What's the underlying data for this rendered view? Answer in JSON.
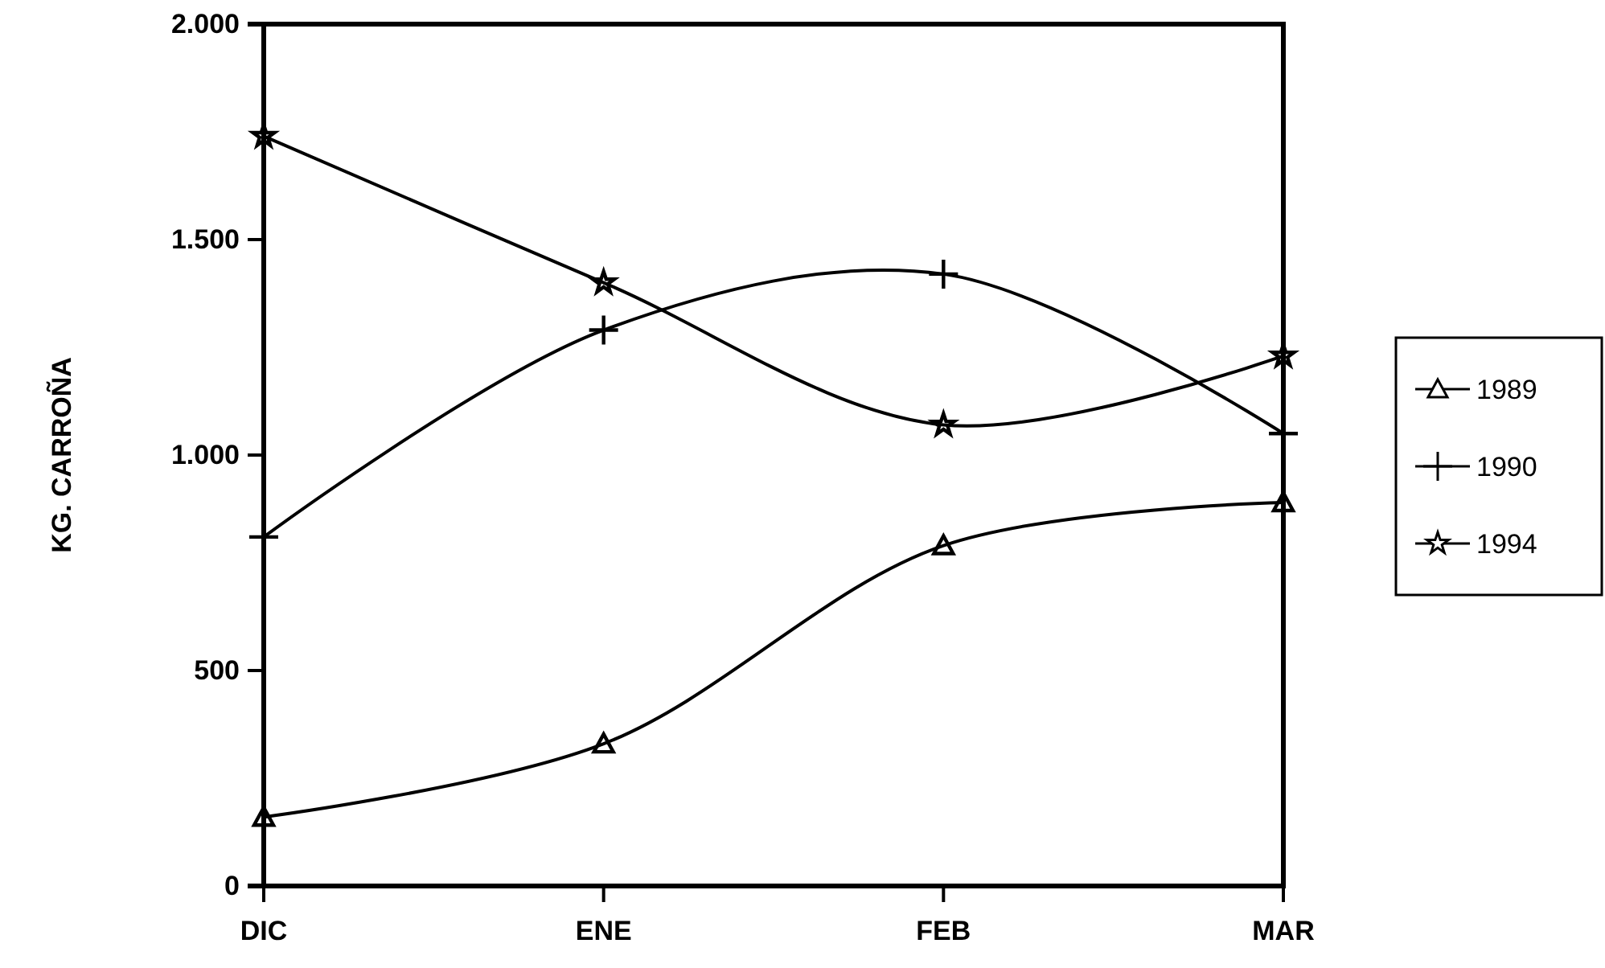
{
  "chart_data": {
    "type": "line",
    "ylabel": "KG. CARROÑA",
    "categories": [
      "DIC",
      "ENE",
      "FEB",
      "MAR"
    ],
    "series": [
      {
        "name": "1989",
        "color": "#000000",
        "marker": "triangle",
        "values": [
          160,
          330,
          790,
          890
        ]
      },
      {
        "name": "1990",
        "color": "#000000",
        "marker": "cross",
        "values": [
          810,
          1290,
          1420,
          1050
        ]
      },
      {
        "name": "1994",
        "color": "#000000",
        "marker": "star",
        "values": [
          1740,
          1400,
          1070,
          1230
        ]
      }
    ],
    "ylim": [
      0,
      2000
    ],
    "yticks": [
      {
        "value": 0,
        "label": "0"
      },
      {
        "value": 500,
        "label": "500"
      },
      {
        "value": 1000,
        "label": "1.000"
      },
      {
        "value": 1500,
        "label": "1.500"
      },
      {
        "value": 2000,
        "label": "2.000"
      }
    ],
    "grid": false,
    "legend": "right",
    "line_style": "solid"
  }
}
